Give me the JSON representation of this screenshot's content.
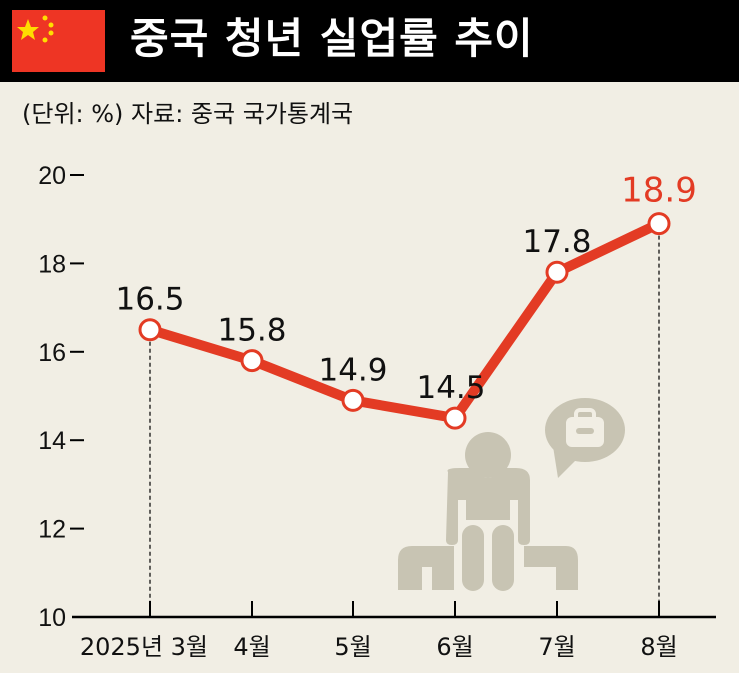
{
  "header": {
    "title": "중국 청년 실업률 추이",
    "flag_icon": "china-flag-icon"
  },
  "subtitle": "(단위: %) 자료: 중국 국가통계국",
  "colors": {
    "line": "#e33b24",
    "highlight": "#e33b24",
    "text": "#111111",
    "illustration": "#c8c4b3"
  },
  "chart_data": {
    "type": "line",
    "categories": [
      "2025년 3월",
      "4월",
      "5월",
      "6월",
      "7월",
      "8월"
    ],
    "series": [
      {
        "values": [
          16.5,
          15.8,
          14.9,
          14.5,
          17.8,
          18.9
        ]
      }
    ],
    "data_labels": [
      "16.5",
      "15.8",
      "14.9",
      "14.5",
      "17.8",
      "18.9"
    ],
    "ylim": [
      10,
      20
    ],
    "yticks": [
      "10",
      "12",
      "14",
      "16",
      "18",
      "20"
    ],
    "highlight_last": true,
    "grid": false
  }
}
